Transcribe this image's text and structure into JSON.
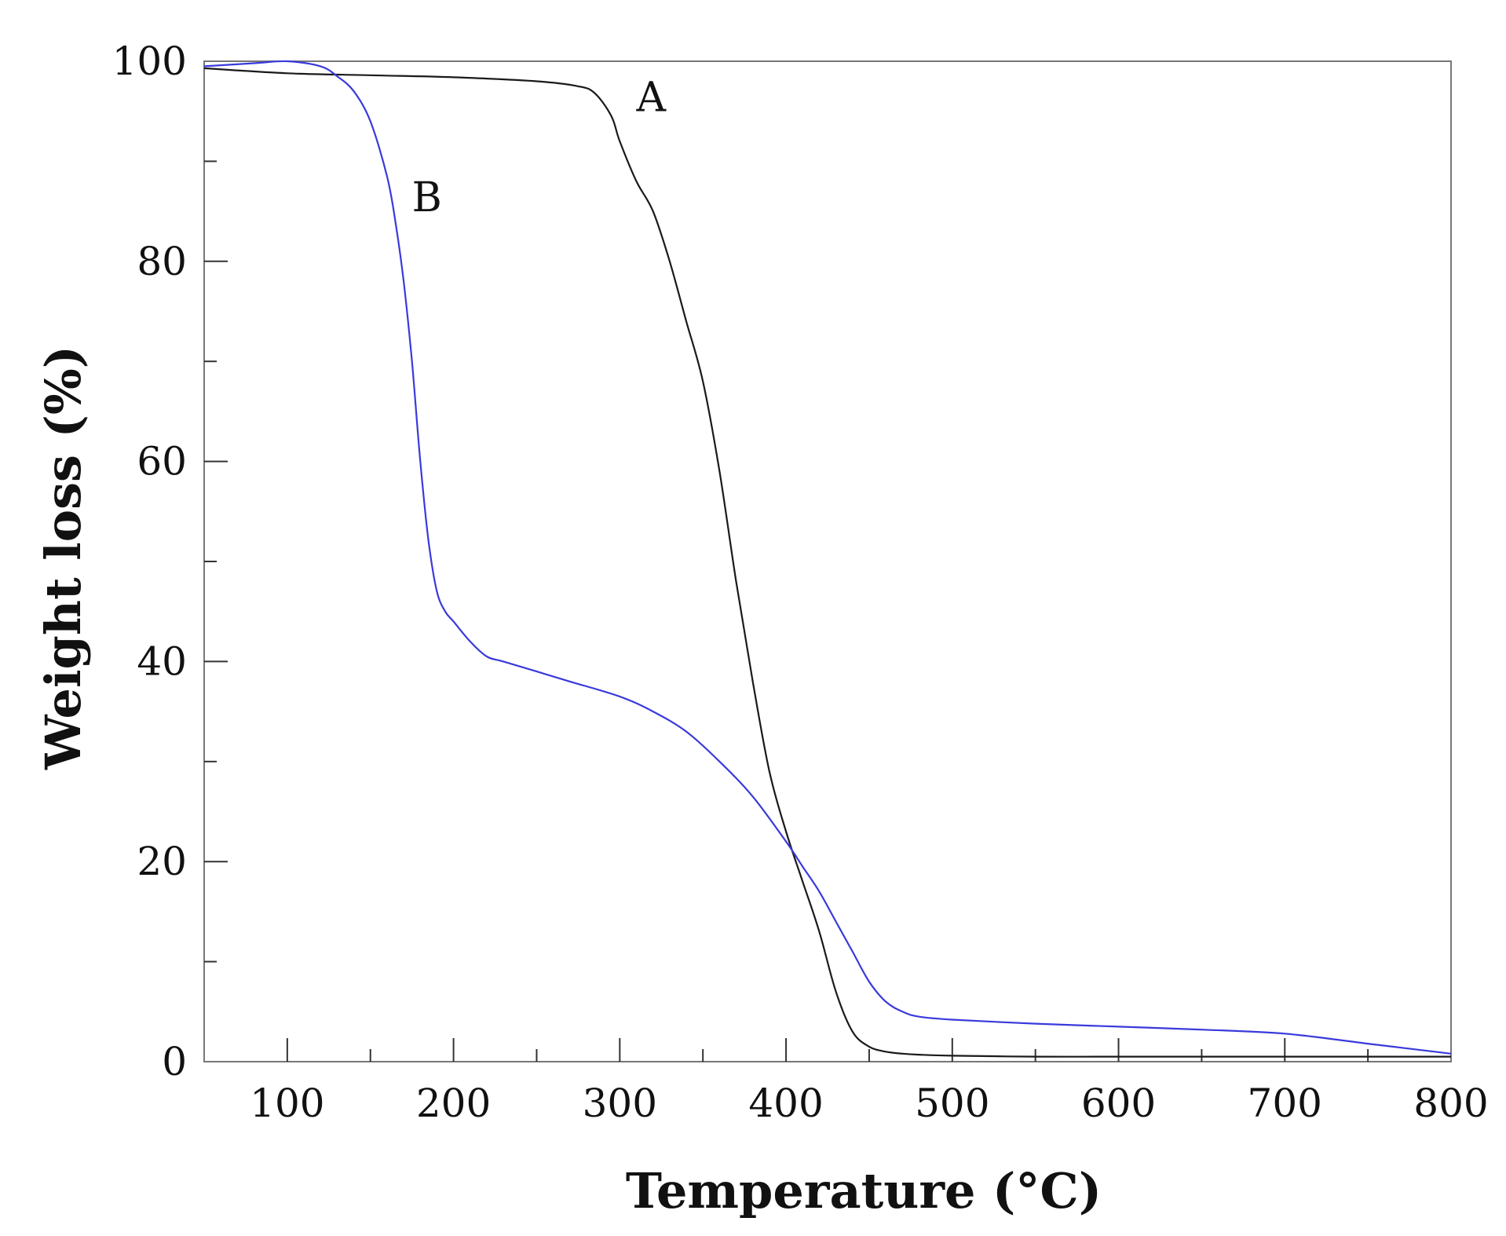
{
  "chart_data": {
    "type": "line",
    "title": "",
    "xlabel": "Temperature (°C)",
    "ylabel": "Weight loss (%)",
    "xlim": [
      50,
      800
    ],
    "ylim": [
      0,
      100
    ],
    "x_major_ticks": [
      100,
      200,
      300,
      400,
      500,
      600,
      700,
      800
    ],
    "x_tick_labels": [
      "100",
      "200",
      "300",
      "400",
      "500",
      "600",
      "700",
      "800"
    ],
    "x_minor_ticks": [
      150,
      250,
      350,
      450,
      550,
      650,
      750
    ],
    "y_major_ticks": [
      0,
      20,
      40,
      60,
      80,
      100
    ],
    "y_tick_labels": [
      "0",
      "20",
      "40",
      "60",
      "80",
      "100"
    ],
    "y_minor_ticks": [
      10,
      30,
      50,
      70,
      90
    ],
    "grid": false,
    "series": [
      {
        "name": "A",
        "label": "A",
        "color": "#1a1a1a",
        "label_at": [
          310,
          95
        ],
        "x": [
          50,
          100,
          150,
          200,
          250,
          275,
          285,
          295,
          300,
          310,
          320,
          330,
          340,
          350,
          360,
          370,
          380,
          390,
          400,
          410,
          420,
          430,
          440,
          450,
          460,
          470,
          480,
          500,
          550,
          600,
          650,
          700,
          750,
          800
        ],
        "y": [
          99.3,
          98.8,
          98.6,
          98.4,
          98.0,
          97.5,
          96.8,
          94.5,
          92.0,
          88.0,
          85.0,
          80.0,
          74.0,
          68.0,
          59.0,
          48.0,
          38.0,
          29.0,
          23.0,
          18.0,
          13.0,
          7.0,
          3.0,
          1.5,
          1.0,
          0.8,
          0.7,
          0.6,
          0.5,
          0.5,
          0.5,
          0.5,
          0.5,
          0.5
        ]
      },
      {
        "name": "B",
        "label": "B",
        "color": "#3a3adc",
        "label_at": [
          175,
          85
        ],
        "x": [
          50,
          80,
          100,
          120,
          130,
          140,
          150,
          160,
          165,
          170,
          175,
          180,
          185,
          190,
          195,
          200,
          210,
          220,
          230,
          250,
          270,
          300,
          320,
          340,
          360,
          380,
          400,
          410,
          420,
          430,
          440,
          450,
          460,
          470,
          480,
          500,
          550,
          600,
          650,
          700,
          750,
          800
        ],
        "y": [
          99.5,
          99.8,
          100.0,
          99.5,
          98.5,
          97.0,
          94.0,
          88.5,
          84.0,
          78.0,
          70.0,
          60.0,
          52.0,
          47.0,
          45.0,
          44.0,
          42.0,
          40.5,
          40.0,
          39.0,
          38.0,
          36.5,
          35.0,
          33.0,
          30.0,
          26.5,
          22.0,
          19.5,
          17.0,
          14.0,
          11.0,
          8.0,
          6.0,
          5.0,
          4.5,
          4.2,
          3.8,
          3.5,
          3.2,
          2.8,
          1.8,
          0.8
        ]
      }
    ]
  }
}
